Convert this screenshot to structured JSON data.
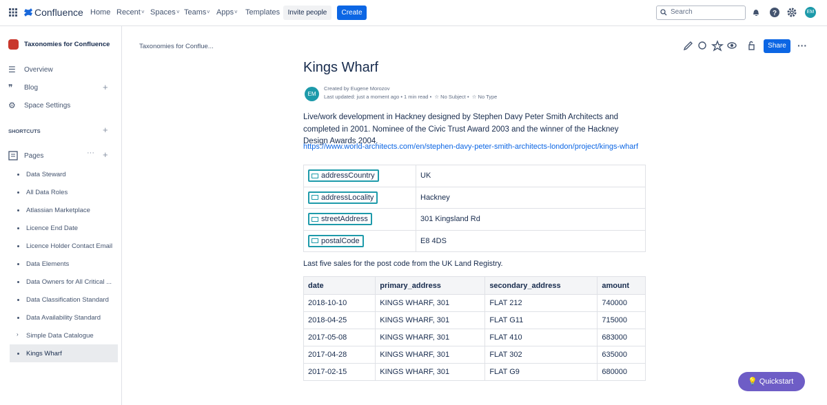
{
  "topnav": {
    "brand": "Confluence",
    "items": [
      "Home",
      "Recent",
      "Spaces",
      "Teams",
      "Apps",
      "Templates"
    ],
    "invite": "Invite people",
    "create": "Create",
    "search": "Search",
    "avatar": "EM"
  },
  "sidebar": {
    "space": "Taxonomies for Confluence",
    "links": [
      "Overview",
      "Blog",
      "Space Settings"
    ],
    "shortcuts": "SHORTCUTS",
    "pages_label": "Pages",
    "pages": [
      "Data Steward",
      "All Data Roles",
      "Atlassian Marketplace",
      "Licence End Date",
      "Licence Holder Contact Email",
      "Data Elements",
      "Data Owners for All Critical ...",
      "Data Classification Standard",
      "Data Availability Standard",
      "Simple Data Catalogue",
      "Kings Wharf"
    ]
  },
  "breadcrumb": "Taxonomies for Conflue...",
  "share": "Share",
  "page": {
    "title": "Kings Wharf",
    "avatar": "EM",
    "created_by": "Created by Eugene Morozov",
    "last_updated": "Last updated: just a moment ago",
    "read_time": "1 min read",
    "subject": "No Subject",
    "type": "No Type",
    "description": "Live/work development in Hackney designed by Stephen Davy Peter Smith Architects and completed in 2001. Nominee of the Civic Trust Award 2003 and the winner of the Hackney Design Awards 2004.",
    "link": "https://www.world-architects.com/en/stephen-davy-peter-smith-architects-london/project/kings-wharf",
    "properties": [
      [
        "addressCountry",
        "UK"
      ],
      [
        "addressLocality",
        "Hackney"
      ],
      [
        "streetAddress",
        "301 Kingsland Rd"
      ],
      [
        "postalCode",
        "E8 4DS"
      ]
    ],
    "sales_caption": "Last five sales for the post code from the UK Land Registry.",
    "sales_table": {
      "columns": [
        "date",
        "primary_address",
        "secondary_address",
        "amount"
      ],
      "rows": [
        [
          "2018-10-10",
          "KINGS WHARF, 301",
          "FLAT 212",
          740000
        ],
        [
          "2018-04-25",
          "KINGS WHARF, 301",
          "FLAT G11",
          715000
        ],
        [
          "2017-05-08",
          "KINGS WHARF, 301",
          "FLAT 410",
          683000
        ],
        [
          "2017-04-28",
          "KINGS WHARF, 301",
          "FLAT 302",
          635000
        ],
        [
          "2017-02-15",
          "KINGS WHARF, 301",
          "FLAT G9",
          680000
        ]
      ]
    }
  },
  "quickstart": "Quickstart"
}
